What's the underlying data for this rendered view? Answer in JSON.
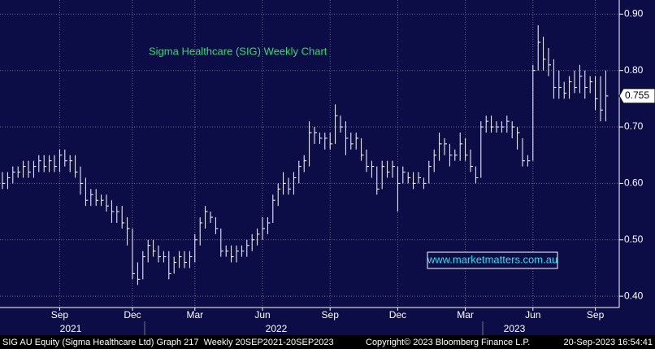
{
  "chart_data": {
    "type": "ohlc",
    "title": "Sigma Healthcare (SIG) Weekly Chart",
    "watermark": "www.marketmatters.com.au",
    "color": "#ffffff",
    "grid": true,
    "categories": [
      null,
      null,
      null,
      null,
      null,
      null,
      null,
      null,
      null,
      null,
      null,
      "Sep",
      null,
      null,
      null,
      null,
      null,
      null,
      null,
      null,
      null,
      null,
      null,
      null,
      null,
      "Dec",
      null,
      null,
      null,
      null,
      null,
      null,
      null,
      null,
      null,
      null,
      null,
      "Mar",
      null,
      null,
      null,
      null,
      null,
      null,
      null,
      null,
      null,
      null,
      null,
      null,
      "Jun",
      null,
      null,
      null,
      null,
      null,
      null,
      null,
      null,
      null,
      null,
      null,
      null,
      "Sep",
      null,
      null,
      null,
      null,
      null,
      null,
      null,
      null,
      null,
      null,
      null,
      null,
      "Dec",
      null,
      null,
      null,
      null,
      null,
      null,
      null,
      null,
      null,
      null,
      null,
      null,
      "Mar",
      null,
      null,
      null,
      null,
      null,
      null,
      null,
      null,
      null,
      null,
      null,
      null,
      "Jun",
      null,
      null,
      null,
      null,
      null,
      null,
      null,
      null,
      null,
      null,
      null,
      "Sep",
      null,
      null
    ],
    "year_labels": [
      "2021",
      "2022",
      "2023"
    ],
    "high": [
      0.62,
      0.62,
      0.63,
      0.63,
      0.64,
      0.64,
      0.64,
      0.65,
      0.65,
      0.65,
      0.65,
      0.66,
      0.66,
      0.65,
      0.65,
      0.63,
      0.61,
      0.59,
      0.59,
      0.58,
      0.58,
      0.57,
      0.56,
      0.56,
      0.54,
      0.52,
      0.46,
      0.48,
      0.5,
      0.5,
      0.49,
      0.48,
      0.48,
      0.47,
      0.48,
      0.48,
      0.48,
      0.51,
      0.54,
      0.56,
      0.55,
      0.54,
      0.52,
      0.49,
      0.49,
      0.49,
      0.49,
      0.5,
      0.51,
      0.52,
      0.54,
      0.54,
      0.58,
      0.6,
      0.62,
      0.61,
      0.62,
      0.64,
      0.65,
      0.71,
      0.7,
      0.69,
      0.69,
      0.69,
      0.74,
      0.72,
      0.71,
      0.69,
      0.69,
      0.68,
      0.66,
      0.64,
      0.63,
      0.64,
      0.64,
      0.64,
      0.63,
      0.63,
      0.62,
      0.62,
      0.62,
      0.61,
      0.64,
      0.66,
      0.69,
      0.68,
      0.67,
      0.66,
      0.69,
      0.68,
      0.66,
      0.63,
      0.71,
      0.72,
      0.72,
      0.71,
      0.71,
      0.72,
      0.71,
      0.7,
      0.68,
      0.65,
      0.81,
      0.88,
      0.86,
      0.84,
      0.82,
      0.8,
      0.78,
      0.79,
      0.8,
      0.81,
      0.8,
      0.79,
      0.79,
      0.79,
      0.8
    ],
    "low": [
      0.59,
      0.59,
      0.6,
      0.61,
      0.61,
      0.61,
      0.61,
      0.62,
      0.62,
      0.62,
      0.62,
      0.62,
      0.63,
      0.62,
      0.61,
      0.58,
      0.56,
      0.56,
      0.56,
      0.56,
      0.55,
      0.53,
      0.53,
      0.52,
      0.49,
      0.43,
      0.42,
      0.43,
      0.46,
      0.47,
      0.46,
      0.46,
      0.43,
      0.44,
      0.45,
      0.45,
      0.45,
      0.46,
      0.49,
      0.52,
      0.53,
      0.51,
      0.47,
      0.47,
      0.46,
      0.46,
      0.47,
      0.47,
      0.48,
      0.49,
      0.5,
      0.51,
      0.53,
      0.56,
      0.58,
      0.58,
      0.58,
      0.6,
      0.62,
      0.63,
      0.67,
      0.67,
      0.66,
      0.66,
      0.67,
      0.69,
      0.65,
      0.66,
      0.66,
      0.64,
      0.62,
      0.61,
      0.58,
      0.59,
      0.61,
      0.61,
      0.55,
      0.6,
      0.6,
      0.59,
      0.6,
      0.59,
      0.6,
      0.62,
      0.64,
      0.65,
      0.63,
      0.64,
      0.64,
      0.64,
      0.62,
      0.6,
      0.61,
      0.69,
      0.69,
      0.69,
      0.69,
      0.69,
      0.68,
      0.66,
      0.63,
      0.63,
      0.64,
      0.8,
      0.8,
      0.79,
      0.75,
      0.75,
      0.75,
      0.75,
      0.76,
      0.76,
      0.75,
      0.76,
      0.73,
      0.71,
      0.71
    ],
    "close": [
      0.6,
      0.61,
      0.62,
      0.62,
      0.63,
      0.62,
      0.63,
      0.64,
      0.63,
      0.64,
      0.63,
      0.65,
      0.64,
      0.64,
      0.62,
      0.6,
      0.57,
      0.58,
      0.57,
      0.57,
      0.56,
      0.55,
      0.55,
      0.53,
      0.52,
      0.44,
      0.43,
      0.47,
      0.49,
      0.48,
      0.47,
      0.47,
      0.44,
      0.46,
      0.47,
      0.46,
      0.47,
      0.5,
      0.53,
      0.55,
      0.54,
      0.52,
      0.48,
      0.48,
      0.47,
      0.48,
      0.48,
      0.49,
      0.5,
      0.51,
      0.52,
      0.53,
      0.57,
      0.59,
      0.6,
      0.59,
      0.61,
      0.63,
      0.64,
      0.69,
      0.69,
      0.68,
      0.68,
      0.67,
      0.72,
      0.7,
      0.68,
      0.67,
      0.68,
      0.65,
      0.63,
      0.63,
      0.59,
      0.63,
      0.62,
      0.63,
      0.6,
      0.62,
      0.61,
      0.6,
      0.61,
      0.6,
      0.63,
      0.65,
      0.67,
      0.67,
      0.65,
      0.65,
      0.67,
      0.65,
      0.63,
      0.61,
      0.7,
      0.71,
      0.7,
      0.7,
      0.7,
      0.71,
      0.7,
      0.69,
      0.64,
      0.64,
      0.8,
      0.85,
      0.82,
      0.81,
      0.77,
      0.77,
      0.76,
      0.78,
      0.77,
      0.79,
      0.77,
      0.78,
      0.75,
      0.73,
      0.755
    ],
    "ylim": [
      0.38,
      0.925
    ],
    "yticks": [
      {
        "value": 0.4,
        "label": "0.40"
      },
      {
        "value": 0.5,
        "label": "0.50"
      },
      {
        "value": 0.6,
        "label": "0.60"
      },
      {
        "value": 0.7,
        "label": "0.70"
      },
      {
        "value": 0.8,
        "label": "0.80"
      },
      {
        "value": 0.9,
        "label": "0.90"
      }
    ]
  },
  "footer": {
    "left": "SIG AU Equity (Sigma Healthcare Ltd) Graph 217  Weekly 20SEP2021-20SEP2023",
    "center": "Copyright© 2023 Bloomberg Finance L.P.",
    "right": "20-Sep-2023 16:54:41"
  }
}
